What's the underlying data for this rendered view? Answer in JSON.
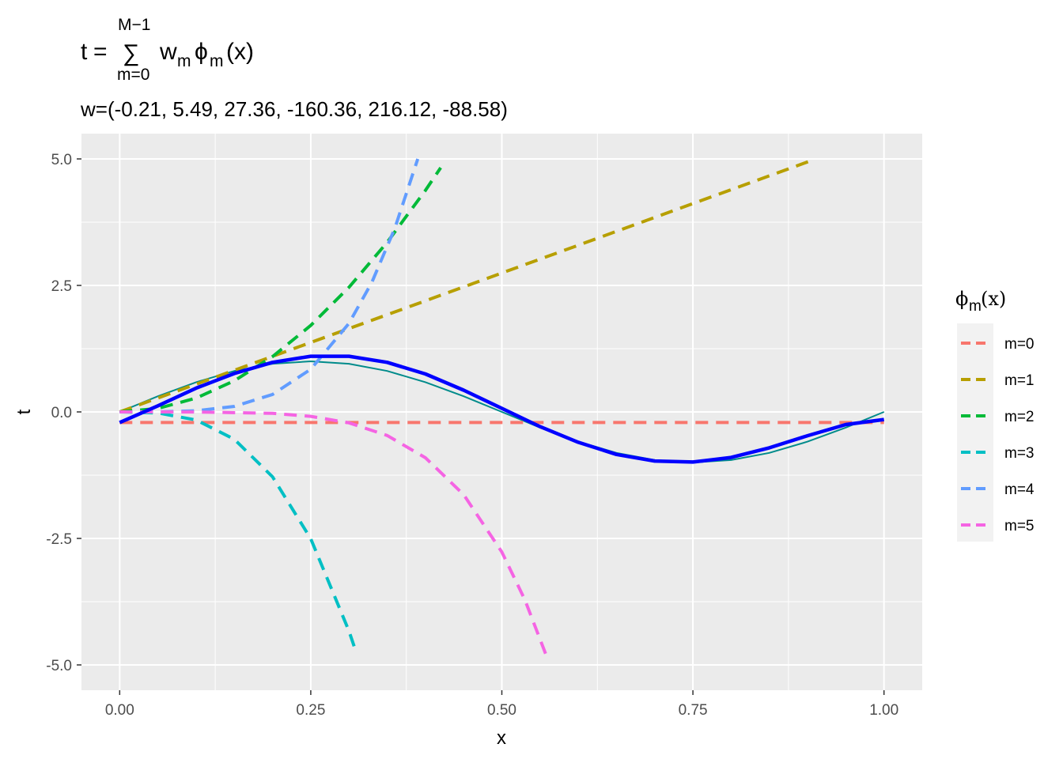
{
  "chart_data": {
    "type": "line",
    "title": {
      "lhs": "t",
      "equals": "=",
      "sum_symbol": "∑",
      "sum_upper": "M−1",
      "sum_lower": "m=0",
      "term_w": "w",
      "term_w_sub": "m",
      "term_phi": "ϕ",
      "term_phi_sub": "m",
      "term_arg": "(x)"
    },
    "subtitle": "w=(-0.21, 5.49, 27.36, -160.36, 216.12, -88.58)",
    "weights": [
      -0.21,
      5.49,
      27.36,
      -160.36,
      216.12,
      -88.58
    ],
    "xlabel": "x",
    "ylabel": "t",
    "xlim": [
      -0.05,
      1.05
    ],
    "ylim": [
      -5.5,
      5.5
    ],
    "x_ticks": [
      0,
      0.25,
      0.5,
      0.75,
      1.0
    ],
    "x_tick_labels": [
      "0.00",
      "0.25",
      "0.50",
      "0.75",
      "1.00"
    ],
    "y_ticks": [
      -5,
      -2.5,
      0,
      2.5,
      5
    ],
    "y_tick_labels": [
      "-5.0",
      "-2.5",
      "0.0",
      "2.5",
      "5.0"
    ],
    "grid": true,
    "legend": {
      "title_phi": "ϕ",
      "title_sub": "m",
      "title_arg": "(x)",
      "placement": "right"
    },
    "series": [
      {
        "name": "m=0",
        "color": "#F8766D",
        "style": "dashed",
        "x": [
          0,
          0.125,
          0.25,
          0.375,
          0.5,
          0.625,
          0.75,
          0.875,
          1.0
        ],
        "y": [
          -0.21,
          -0.21,
          -0.21,
          -0.21,
          -0.21,
          -0.21,
          -0.21,
          -0.21,
          -0.21
        ]
      },
      {
        "name": "m=1",
        "color": "#B79F00",
        "style": "dashed",
        "x": [
          0,
          0.1,
          0.2,
          0.3,
          0.4,
          0.5,
          0.6,
          0.7,
          0.8,
          0.91
        ],
        "y": [
          0,
          0.549,
          1.098,
          1.647,
          2.196,
          2.745,
          3.294,
          3.843,
          4.392,
          4.996
        ]
      },
      {
        "name": "m=2",
        "color": "#00BA38",
        "style": "dashed",
        "x": [
          0,
          0.05,
          0.1,
          0.15,
          0.2,
          0.25,
          0.3,
          0.35,
          0.4,
          0.42
        ],
        "y": [
          0,
          0.068,
          0.274,
          0.616,
          1.094,
          1.71,
          2.462,
          3.352,
          4.378,
          4.826
        ]
      },
      {
        "name": "m=3",
        "color": "#00BFC4",
        "style": "dashed",
        "x": [
          0,
          0.05,
          0.1,
          0.15,
          0.2,
          0.25,
          0.3,
          0.31
        ],
        "y": [
          0,
          -0.02,
          -0.16,
          -0.541,
          -1.283,
          -2.506,
          -4.33,
          -4.777
        ]
      },
      {
        "name": "m=4",
        "color": "#619CFF",
        "style": "dashed",
        "x": [
          0,
          0.05,
          0.1,
          0.15,
          0.2,
          0.25,
          0.3,
          0.33,
          0.36,
          0.39
        ],
        "y": [
          0,
          0.001,
          0.022,
          0.109,
          0.346,
          0.844,
          1.75,
          2.562,
          3.629,
          5.0
        ]
      },
      {
        "name": "m=5",
        "color": "#F564E3",
        "style": "dashed",
        "x": [
          0,
          0.1,
          0.2,
          0.25,
          0.3,
          0.35,
          0.4,
          0.45,
          0.5,
          0.53,
          0.56
        ],
        "y": [
          0,
          -0.001,
          -0.028,
          -0.087,
          -0.215,
          -0.465,
          -0.907,
          -1.635,
          -2.768,
          -3.709,
          -4.887
        ]
      }
    ],
    "fit_curve": {
      "color": "#0000FF",
      "x": [
        0,
        0.05,
        0.1,
        0.15,
        0.2,
        0.25,
        0.3,
        0.35,
        0.4,
        0.45,
        0.5,
        0.55,
        0.6,
        0.65,
        0.7,
        0.75,
        0.8,
        0.85,
        0.9,
        0.95,
        1.0
      ],
      "y": [
        -0.21,
        0.12,
        0.47,
        0.76,
        0.98,
        1.1,
        1.1,
        0.98,
        0.75,
        0.43,
        0.07,
        -0.29,
        -0.6,
        -0.84,
        -0.97,
        -0.99,
        -0.9,
        -0.71,
        -0.47,
        -0.25,
        -0.15
      ]
    },
    "true_curve": {
      "color": "#008B8B",
      "x": [
        0,
        0.05,
        0.1,
        0.15,
        0.2,
        0.25,
        0.3,
        0.35,
        0.4,
        0.45,
        0.5,
        0.55,
        0.6,
        0.65,
        0.7,
        0.75,
        0.8,
        0.85,
        0.9,
        0.95,
        1.0
      ],
      "y": [
        0,
        0.309,
        0.588,
        0.809,
        0.951,
        1.0,
        0.951,
        0.809,
        0.588,
        0.309,
        0,
        -0.309,
        -0.588,
        -0.809,
        -0.951,
        -1.0,
        -0.951,
        -0.809,
        -0.588,
        -0.309,
        0
      ]
    }
  }
}
